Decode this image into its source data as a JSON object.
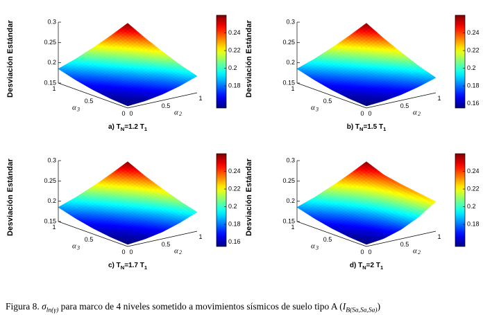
{
  "figure": {
    "ylabel": "Desviación Estándar"
  },
  "caption": {
    "p1": "Figura 8.  ",
    "sigma": "σ",
    "sigma_sub": "ln(γ)",
    "p2": "  para marco de 4 niveles sometido a movimientos sísmicos de suelo tipo A (",
    "ivar": "I",
    "isub": "B(Sa,Sa,Sa)",
    "p3": ")"
  },
  "chart_data": [
    {
      "type": "surface",
      "colormap": "jet",
      "caption": {
        "pre": "a) T",
        "sub1": "N",
        "mid": "=1.2 T",
        "sub2": "1"
      },
      "x_axis": {
        "label_base": "α",
        "label_sub": "2",
        "ticks": [
          0,
          0.5,
          1
        ],
        "range": [
          0,
          1
        ]
      },
      "y_axis": {
        "label_base": "α",
        "label_sub": "3",
        "ticks": [
          0,
          0.5,
          1
        ],
        "range": [
          0,
          1
        ]
      },
      "z_axis": {
        "label": "Desviación Estándar",
        "ticks": [
          0.15,
          0.2,
          0.25,
          0.3
        ],
        "range": [
          0.15,
          0.3
        ]
      },
      "colorbar": {
        "ticks": [
          0.18,
          0.2,
          0.22,
          0.24
        ],
        "range": [
          0.155,
          0.26
        ]
      },
      "grid_a2": [
        0,
        0.25,
        0.5,
        0.75,
        1
      ],
      "grid_a3": [
        0,
        0.25,
        0.5,
        0.75,
        1
      ],
      "z_values": [
        [
          0.155,
          0.158,
          0.165,
          0.176,
          0.191
        ],
        [
          0.158,
          0.164,
          0.174,
          0.186,
          0.204
        ],
        [
          0.164,
          0.173,
          0.186,
          0.202,
          0.221
        ],
        [
          0.173,
          0.185,
          0.201,
          0.218,
          0.239
        ],
        [
          0.185,
          0.2,
          0.218,
          0.238,
          0.26
        ]
      ]
    },
    {
      "type": "surface",
      "colormap": "jet",
      "caption": {
        "pre": "b) T",
        "sub1": "N",
        "mid": "=1.5 T",
        "sub2": "1"
      },
      "x_axis": {
        "label_base": "α",
        "label_sub": "2",
        "ticks": [
          0,
          0.5,
          1
        ],
        "range": [
          0,
          1
        ]
      },
      "y_axis": {
        "label_base": "α",
        "label_sub": "3",
        "ticks": [
          0,
          0.5,
          1
        ],
        "range": [
          0,
          1
        ]
      },
      "z_axis": {
        "label": "Desviación Estándar",
        "ticks": [
          0.15,
          0.2,
          0.25,
          0.3
        ],
        "range": [
          0.15,
          0.3
        ]
      },
      "colorbar": {
        "ticks": [
          0.16,
          0.18,
          0.2,
          0.22,
          0.24
        ],
        "range": [
          0.155,
          0.26
        ]
      },
      "grid_a2": [
        0,
        0.25,
        0.5,
        0.75,
        1
      ],
      "grid_a3": [
        0,
        0.25,
        0.5,
        0.75,
        1
      ],
      "z_values": [
        [
          0.155,
          0.158,
          0.164,
          0.174,
          0.187
        ],
        [
          0.158,
          0.164,
          0.173,
          0.185,
          0.201
        ],
        [
          0.164,
          0.173,
          0.185,
          0.2,
          0.219
        ],
        [
          0.173,
          0.185,
          0.2,
          0.218,
          0.238
        ],
        [
          0.185,
          0.2,
          0.218,
          0.238,
          0.26
        ]
      ]
    },
    {
      "type": "surface",
      "colormap": "jet",
      "caption": {
        "pre": "c) T",
        "sub1": "N",
        "mid": "=1.7 T",
        "sub2": "1"
      },
      "x_axis": {
        "label_base": "α",
        "label_sub": "2",
        "ticks": [
          0,
          0.5,
          1
        ],
        "range": [
          0,
          1
        ]
      },
      "y_axis": {
        "label_base": "α",
        "label_sub": "3",
        "ticks": [
          0,
          0.5,
          1
        ],
        "range": [
          0,
          1
        ]
      },
      "z_axis": {
        "label": "Desviación Estándar",
        "ticks": [
          0.15,
          0.2,
          0.25,
          0.3
        ],
        "range": [
          0.15,
          0.3
        ]
      },
      "colorbar": {
        "ticks": [
          0.16,
          0.18,
          0.2,
          0.22,
          0.24
        ],
        "range": [
          0.155,
          0.26
        ]
      },
      "grid_a2": [
        0,
        0.25,
        0.5,
        0.75,
        1
      ],
      "grid_a3": [
        0,
        0.25,
        0.5,
        0.75,
        1
      ],
      "z_values": [
        [
          0.155,
          0.159,
          0.167,
          0.18,
          0.197
        ],
        [
          0.158,
          0.164,
          0.175,
          0.19,
          0.209
        ],
        [
          0.164,
          0.173,
          0.187,
          0.203,
          0.224
        ],
        [
          0.173,
          0.185,
          0.201,
          0.219,
          0.24
        ],
        [
          0.185,
          0.2,
          0.218,
          0.238,
          0.26
        ]
      ]
    },
    {
      "type": "surface",
      "colormap": "jet",
      "caption": {
        "pre": "d) T",
        "sub1": "N",
        "mid": "=2 T",
        "sub2": "1"
      },
      "x_axis": {
        "label_base": "α",
        "label_sub": "2",
        "ticks": [
          0,
          0.5,
          1
        ],
        "range": [
          0,
          1
        ]
      },
      "y_axis": {
        "label_base": "α",
        "label_sub": "3",
        "ticks": [
          0,
          0.5,
          1
        ],
        "range": [
          0,
          1
        ]
      },
      "z_axis": {
        "label": "Desviación Estándar",
        "ticks": [
          0.15,
          0.2,
          0.25,
          0.3
        ],
        "range": [
          0.15,
          0.3
        ]
      },
      "colorbar": {
        "ticks": [
          0.18,
          0.2,
          0.22,
          0.24
        ],
        "range": [
          0.155,
          0.26
        ]
      },
      "grid_a2": [
        0,
        0.25,
        0.5,
        0.75,
        1
      ],
      "grid_a3": [
        0,
        0.25,
        0.5,
        0.75,
        1
      ],
      "z_values": [
        [
          0.155,
          0.16,
          0.173,
          0.194,
          0.223
        ],
        [
          0.158,
          0.165,
          0.18,
          0.202,
          0.229
        ],
        [
          0.164,
          0.174,
          0.19,
          0.21,
          0.235
        ],
        [
          0.173,
          0.186,
          0.203,
          0.221,
          0.243
        ],
        [
          0.185,
          0.2,
          0.218,
          0.238,
          0.26
        ]
      ]
    }
  ]
}
